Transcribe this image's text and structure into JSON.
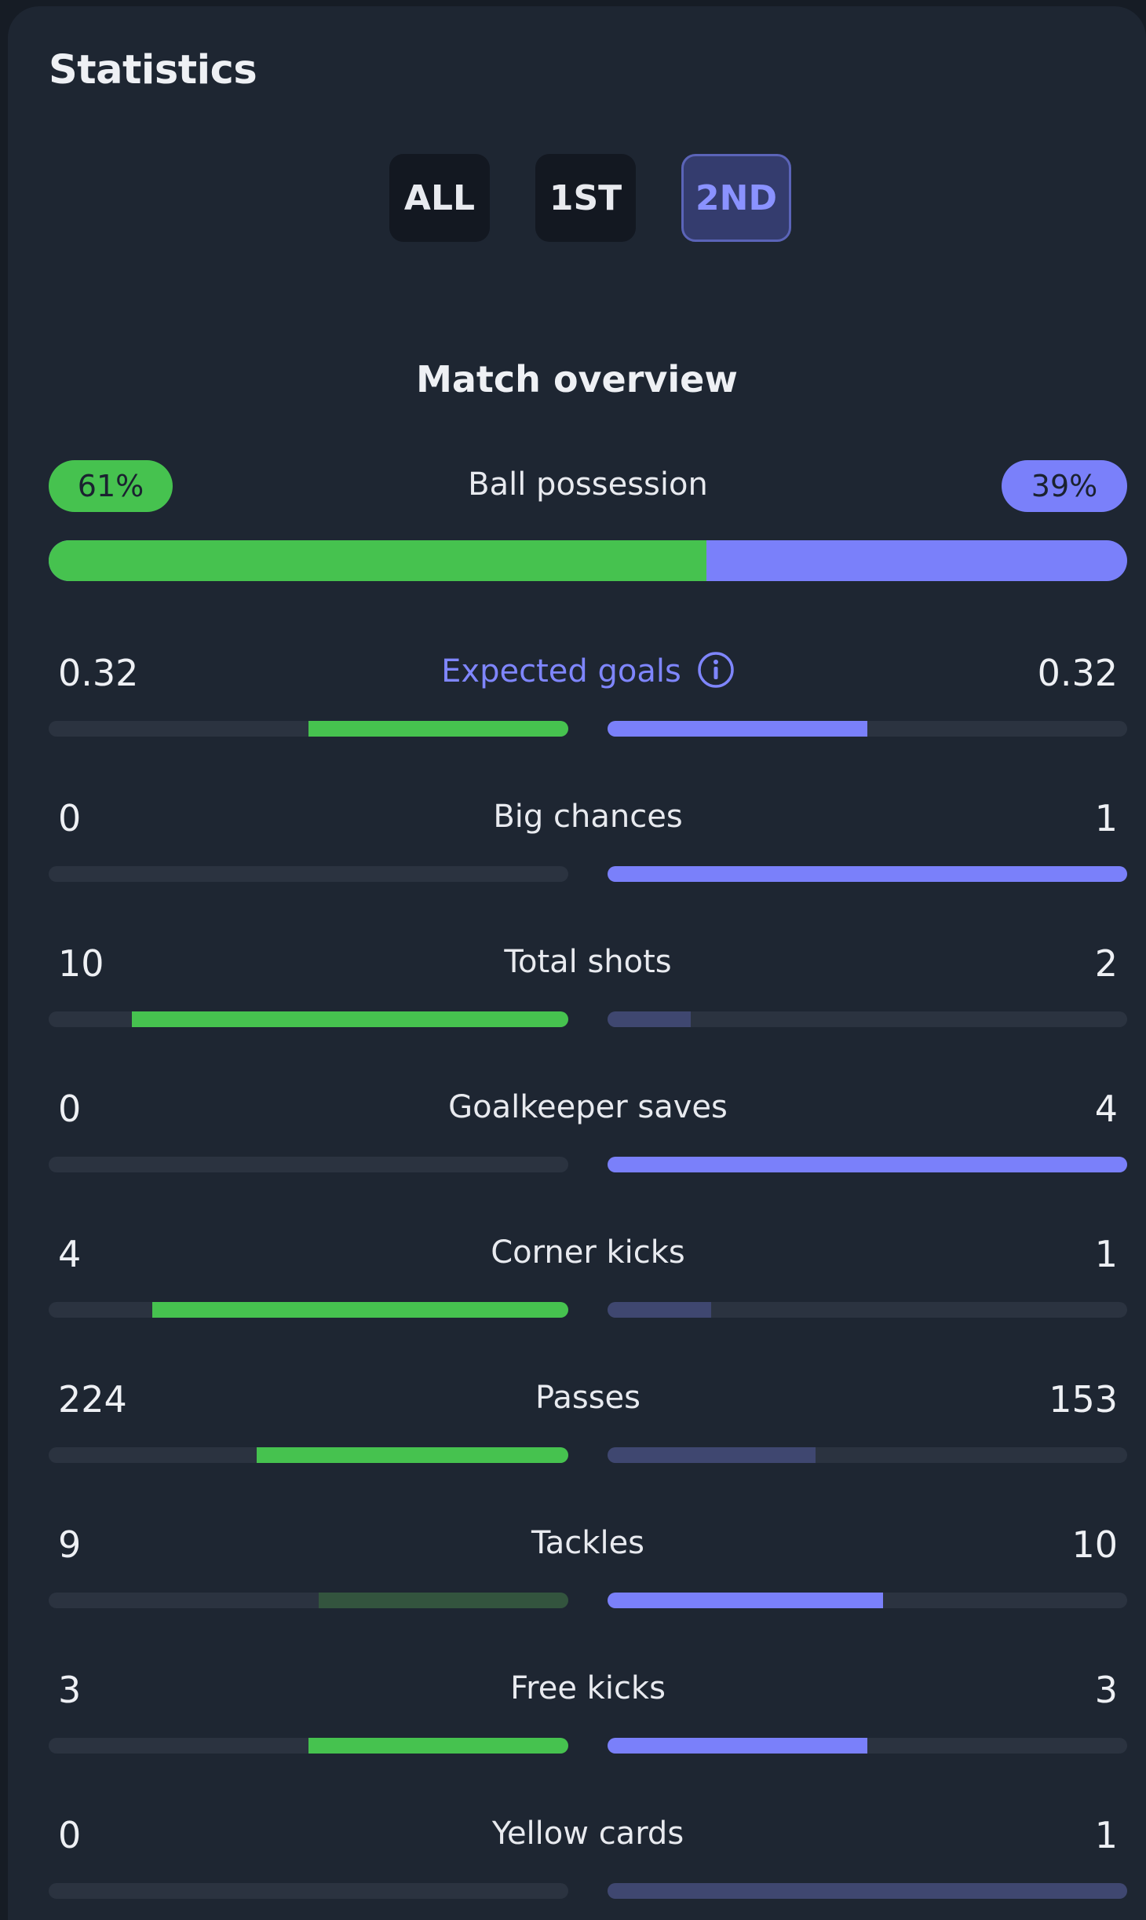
{
  "header": {
    "title": "Statistics"
  },
  "period_tabs": [
    {
      "label": "ALL",
      "active": false
    },
    {
      "label": "1ST",
      "active": false
    },
    {
      "label": "2ND",
      "active": true
    }
  ],
  "section": {
    "title": "Match overview"
  },
  "colors": {
    "home": "#46c24f",
    "away": "#7a80fa",
    "track": "#2b3340",
    "home_weak": "#33543e",
    "away_weak": "#3f4770"
  },
  "possession": {
    "label": "Ball possession",
    "home": "61%",
    "away": "39%",
    "home_fraction": 0.61
  },
  "stats": [
    {
      "label": "Expected goals",
      "home": "0.32",
      "away": "0.32",
      "home_fill": 0.5,
      "away_fill": 0.5,
      "home_strong": true,
      "away_strong": true,
      "info_icon": true
    },
    {
      "label": "Big chances",
      "home": "0",
      "away": "1",
      "home_fill": 0,
      "away_fill": 1,
      "home_strong": false,
      "away_strong": true
    },
    {
      "label": "Total shots",
      "home": "10",
      "away": "2",
      "home_fill": 0.84,
      "away_fill": 0.16,
      "home_strong": true,
      "away_strong": false
    },
    {
      "label": "Goalkeeper saves",
      "home": "0",
      "away": "4",
      "home_fill": 0,
      "away_fill": 1,
      "home_strong": false,
      "away_strong": true
    },
    {
      "label": "Corner kicks",
      "home": "4",
      "away": "1",
      "home_fill": 0.8,
      "away_fill": 0.2,
      "home_strong": true,
      "away_strong": false
    },
    {
      "label": "Passes",
      "home": "224",
      "away": "153",
      "home_fill": 0.6,
      "away_fill": 0.4,
      "home_strong": true,
      "away_strong": false
    },
    {
      "label": "Tackles",
      "home": "9",
      "away": "10",
      "home_fill": 0.48,
      "away_fill": 0.53,
      "home_strong": false,
      "away_strong": true
    },
    {
      "label": "Free kicks",
      "home": "3",
      "away": "3",
      "home_fill": 0.5,
      "away_fill": 0.5,
      "home_strong": true,
      "away_strong": true
    },
    {
      "label": "Yellow cards",
      "home": "0",
      "away": "1",
      "home_fill": 0,
      "away_fill": 1,
      "home_strong": false,
      "away_strong": false
    }
  ]
}
